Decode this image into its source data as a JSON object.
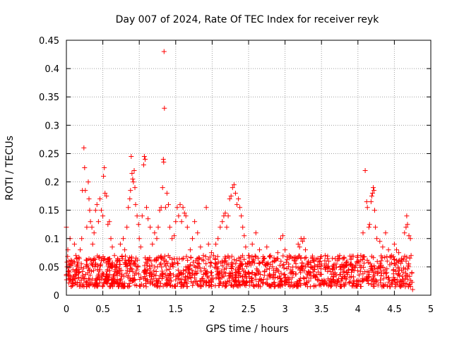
{
  "chart_data": {
    "type": "scatter",
    "title": "Day 007 of 2024, Rate Of TEC Index for receiver reyk",
    "xlabel": "GPS time / hours",
    "ylabel": "ROTI / TECUs",
    "xlim": [
      0,
      5
    ],
    "ylim": [
      0,
      0.45
    ],
    "x_ticks": [
      0,
      0.5,
      1,
      1.5,
      2,
      2.5,
      3,
      3.5,
      4,
      4.5,
      5
    ],
    "y_ticks": [
      0,
      0.05,
      0.1,
      0.15,
      0.2,
      0.25,
      0.3,
      0.35,
      0.4,
      0.45
    ],
    "x_tick_labels": [
      "0",
      "0.5",
      "1",
      "1.5",
      "2",
      "2.5",
      "3",
      "3.5",
      "4",
      "4.5",
      "5"
    ],
    "y_tick_labels": [
      "0",
      "0.05",
      "0.1",
      "0.15",
      "0.2",
      "0.25",
      "0.3",
      "0.35",
      "0.4",
      "0.45"
    ],
    "grid": true,
    "marker": "+",
    "marker_color": "#ff0000",
    "series": [
      {
        "name": "reyk",
        "points": [
          [
            0.0,
            0.12
          ],
          [
            0.01,
            0.05
          ],
          [
            0.02,
            0.08
          ],
          [
            0.04,
            0.035
          ],
          [
            0.05,
            0.1
          ],
          [
            0.07,
            0.06
          ],
          [
            0.09,
            0.045
          ],
          [
            0.11,
            0.09
          ],
          [
            0.13,
            0.07
          ],
          [
            0.15,
            0.055
          ],
          [
            0.17,
            0.03
          ],
          [
            0.19,
            0.08
          ],
          [
            0.21,
            0.1
          ],
          [
            0.22,
            0.185
          ],
          [
            0.24,
            0.26
          ],
          [
            0.25,
            0.225
          ],
          [
            0.26,
            0.185
          ],
          [
            0.28,
            0.12
          ],
          [
            0.3,
            0.2
          ],
          [
            0.31,
            0.17
          ],
          [
            0.32,
            0.15
          ],
          [
            0.33,
            0.13
          ],
          [
            0.35,
            0.12
          ],
          [
            0.36,
            0.09
          ],
          [
            0.38,
            0.11
          ],
          [
            0.4,
            0.15
          ],
          [
            0.42,
            0.16
          ],
          [
            0.44,
            0.13
          ],
          [
            0.46,
            0.17
          ],
          [
            0.48,
            0.15
          ],
          [
            0.5,
            0.14
          ],
          [
            0.51,
            0.21
          ],
          [
            0.52,
            0.225
          ],
          [
            0.53,
            0.18
          ],
          [
            0.55,
            0.175
          ],
          [
            0.57,
            0.125
          ],
          [
            0.59,
            0.13
          ],
          [
            0.61,
            0.1
          ],
          [
            0.63,
            0.085
          ],
          [
            0.66,
            0.07
          ],
          [
            0.7,
            0.06
          ],
          [
            0.74,
            0.09
          ],
          [
            0.78,
            0.1
          ],
          [
            0.8,
            0.08
          ],
          [
            0.83,
            0.12
          ],
          [
            0.85,
            0.155
          ],
          [
            0.87,
            0.17
          ],
          [
            0.88,
            0.185
          ],
          [
            0.89,
            0.245
          ],
          [
            0.9,
            0.215
          ],
          [
            0.91,
            0.205
          ],
          [
            0.92,
            0.2
          ],
          [
            0.93,
            0.22
          ],
          [
            0.94,
            0.19
          ],
          [
            0.95,
            0.16
          ],
          [
            0.97,
            0.14
          ],
          [
            0.99,
            0.125
          ],
          [
            1.0,
            0.1
          ],
          [
            1.02,
            0.085
          ],
          [
            1.04,
            0.14
          ],
          [
            1.06,
            0.23
          ],
          [
            1.07,
            0.245
          ],
          [
            1.08,
            0.24
          ],
          [
            1.1,
            0.155
          ],
          [
            1.12,
            0.135
          ],
          [
            1.15,
            0.12
          ],
          [
            1.18,
            0.09
          ],
          [
            1.21,
            0.11
          ],
          [
            1.24,
            0.1
          ],
          [
            1.26,
            0.12
          ],
          [
            1.28,
            0.15
          ],
          [
            1.3,
            0.155
          ],
          [
            1.32,
            0.19
          ],
          [
            1.33,
            0.24
          ],
          [
            1.335,
            0.235
          ],
          [
            1.34,
            0.43
          ],
          [
            1.345,
            0.33
          ],
          [
            1.36,
            0.155
          ],
          [
            1.38,
            0.18
          ],
          [
            1.4,
            0.16
          ],
          [
            1.42,
            0.12
          ],
          [
            1.45,
            0.1
          ],
          [
            1.48,
            0.105
          ],
          [
            1.5,
            0.13
          ],
          [
            1.52,
            0.155
          ],
          [
            1.54,
            0.14
          ],
          [
            1.56,
            0.16
          ],
          [
            1.58,
            0.13
          ],
          [
            1.6,
            0.155
          ],
          [
            1.62,
            0.145
          ],
          [
            1.64,
            0.14
          ],
          [
            1.66,
            0.12
          ],
          [
            1.7,
            0.08
          ],
          [
            1.73,
            0.1
          ],
          [
            1.76,
            0.13
          ],
          [
            1.8,
            0.11
          ],
          [
            1.84,
            0.085
          ],
          [
            1.88,
            0.07
          ],
          [
            1.92,
            0.155
          ],
          [
            1.95,
            0.09
          ],
          [
            1.99,
            0.075
          ],
          [
            2.02,
            0.07
          ],
          [
            2.05,
            0.09
          ],
          [
            2.08,
            0.1
          ],
          [
            2.11,
            0.12
          ],
          [
            2.14,
            0.13
          ],
          [
            2.16,
            0.14
          ],
          [
            2.18,
            0.145
          ],
          [
            2.2,
            0.12
          ],
          [
            2.22,
            0.14
          ],
          [
            2.24,
            0.17
          ],
          [
            2.26,
            0.175
          ],
          [
            2.28,
            0.19
          ],
          [
            2.3,
            0.195
          ],
          [
            2.32,
            0.18
          ],
          [
            2.34,
            0.16
          ],
          [
            2.36,
            0.17
          ],
          [
            2.38,
            0.155
          ],
          [
            2.4,
            0.14
          ],
          [
            2.42,
            0.12
          ],
          [
            2.44,
            0.105
          ],
          [
            2.46,
            0.085
          ],
          [
            2.5,
            0.07
          ],
          [
            2.55,
            0.09
          ],
          [
            2.6,
            0.11
          ],
          [
            2.65,
            0.08
          ],
          [
            2.7,
            0.06
          ],
          [
            2.75,
            0.085
          ],
          [
            2.8,
            0.07
          ],
          [
            2.85,
            0.06
          ],
          [
            2.9,
            0.075
          ],
          [
            2.94,
            0.1
          ],
          [
            2.97,
            0.105
          ],
          [
            3.0,
            0.08
          ],
          [
            3.05,
            0.055
          ],
          [
            3.1,
            0.065
          ],
          [
            3.15,
            0.05
          ],
          [
            3.18,
            0.09
          ],
          [
            3.2,
            0.085
          ],
          [
            3.22,
            0.1
          ],
          [
            3.24,
            0.095
          ],
          [
            3.26,
            0.1
          ],
          [
            3.28,
            0.08
          ],
          [
            3.32,
            0.06
          ],
          [
            3.36,
            0.05
          ],
          [
            3.4,
            0.06
          ],
          [
            3.45,
            0.065
          ],
          [
            3.5,
            0.055
          ],
          [
            3.55,
            0.07
          ],
          [
            3.6,
            0.06
          ],
          [
            3.65,
            0.065
          ],
          [
            3.7,
            0.055
          ],
          [
            3.75,
            0.07
          ],
          [
            3.8,
            0.05
          ],
          [
            3.85,
            0.06
          ],
          [
            3.9,
            0.055
          ],
          [
            3.95,
            0.05
          ],
          [
            4.0,
            0.06
          ],
          [
            4.04,
            0.07
          ],
          [
            4.07,
            0.11
          ],
          [
            4.1,
            0.22
          ],
          [
            4.12,
            0.165
          ],
          [
            4.13,
            0.155
          ],
          [
            4.15,
            0.12
          ],
          [
            4.16,
            0.125
          ],
          [
            4.18,
            0.165
          ],
          [
            4.19,
            0.175
          ],
          [
            4.2,
            0.18
          ],
          [
            4.21,
            0.19
          ],
          [
            4.22,
            0.185
          ],
          [
            4.23,
            0.15
          ],
          [
            4.24,
            0.12
          ],
          [
            4.26,
            0.1
          ],
          [
            4.3,
            0.095
          ],
          [
            4.34,
            0.085
          ],
          [
            4.38,
            0.11
          ],
          [
            4.42,
            0.08
          ],
          [
            4.46,
            0.07
          ],
          [
            4.5,
            0.09
          ],
          [
            4.53,
            0.08
          ],
          [
            4.56,
            0.075
          ],
          [
            4.6,
            0.065
          ],
          [
            4.64,
            0.11
          ],
          [
            4.66,
            0.12
          ],
          [
            4.67,
            0.14
          ],
          [
            4.68,
            0.125
          ],
          [
            4.7,
            0.105
          ],
          [
            4.72,
            0.1
          ],
          [
            4.73,
            0.07
          ],
          [
            4.74,
            0.04
          ],
          [
            4.75,
            0.01
          ]
        ],
        "band": {
          "x_range": [
            0.0,
            4.75
          ],
          "y_range": [
            0.015,
            0.07
          ],
          "samples": 1400
        }
      }
    ]
  }
}
